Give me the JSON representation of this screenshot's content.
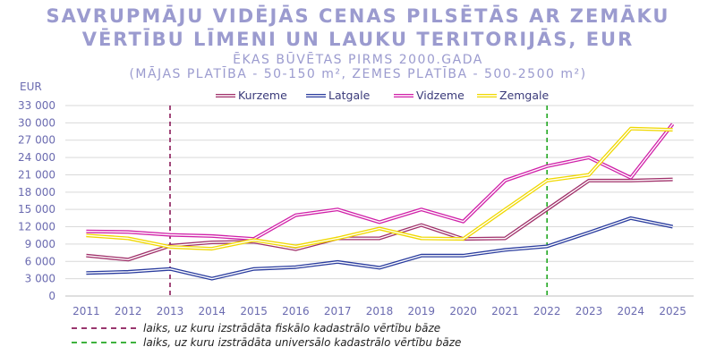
{
  "titles": {
    "line1": "SAVRUPMĀJU VIDĒJĀS CENAS PILSĒTĀS AR ZEMĀKU",
    "line2": "VĒRTĪBU LĪMENI UN LAUKU TERITORIJĀS, EUR",
    "line3": "ĒKAS BŪVĒTAS PIRMS 2000.GADA",
    "line4": "(MĀJAS PLATĪBA - 50-150 m², ZEMES PLATĪBA - 500-2500 m²)"
  },
  "chart_data": {
    "type": "line",
    "ylabel": "EUR",
    "xlabel": "",
    "ylim": [
      0,
      33000
    ],
    "yticks": [
      "0",
      "3 000",
      "6 000",
      "9 000",
      "12 000",
      "15 000",
      "18 000",
      "21 000",
      "24 000",
      "27 000",
      "30 000",
      "33 000"
    ],
    "x": [
      "2011",
      "2012",
      "2013",
      "2014",
      "2015",
      "2016",
      "2017",
      "2018",
      "2019",
      "2020",
      "2021",
      "2022",
      "2023",
      "2024",
      "2025"
    ],
    "grid": true,
    "legend_position": "top",
    "series": [
      {
        "name": "Kurzeme",
        "color": "#a0306a",
        "values": [
          7000,
          6300,
          8700,
          9300,
          9400,
          8100,
          10000,
          10000,
          12300,
          9900,
          10000,
          15000,
          20000,
          20000,
          20200
        ]
      },
      {
        "name": "Latgale",
        "color": "#2a3c9e",
        "values": [
          4000,
          4200,
          4700,
          3000,
          4700,
          5000,
          5900,
          4900,
          7000,
          7000,
          8000,
          8600,
          11000,
          13500,
          12000
        ]
      },
      {
        "name": "Vidzeme",
        "color": "#d020a8",
        "values": [
          11200,
          11100,
          10600,
          10400,
          9900,
          14000,
          15000,
          12800,
          15000,
          12900,
          20000,
          22500,
          24000,
          20500,
          29800
        ]
      },
      {
        "name": "Zemgale",
        "color": "#f0d800",
        "values": [
          10500,
          10000,
          8500,
          8200,
          9700,
          8600,
          10000,
          11700,
          10000,
          9900,
          15000,
          20000,
          21000,
          29000,
          28800
        ]
      }
    ],
    "reference_lines": [
      {
        "x": "2013",
        "color": "#8b1a5a",
        "label": "laiks, uz kuru izstrādāta fiskālo kadastrālo vērtību bāze"
      },
      {
        "x": "2022",
        "color": "#22a822",
        "label": "laiks, uz kuru izstrādāta universālo kadastrālo vērtību bāze"
      }
    ]
  }
}
